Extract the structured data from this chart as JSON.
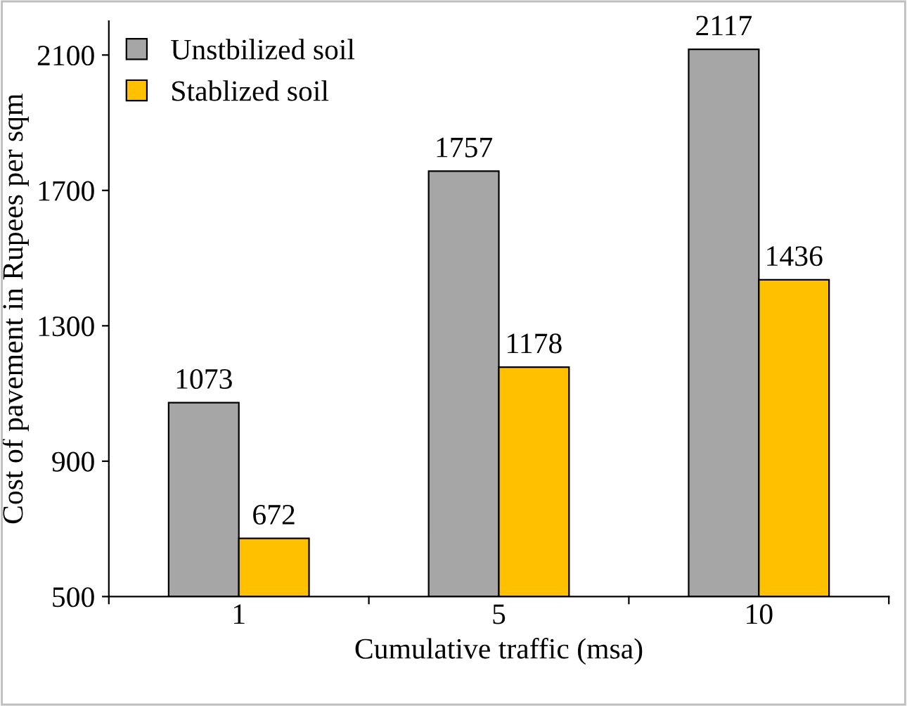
{
  "chart_data": {
    "type": "bar",
    "xlabel": "Cumulative traffic (msa)",
    "ylabel": "Cost of pavement in Rupees per sqm",
    "categories": [
      "1",
      "5",
      "10"
    ],
    "series": [
      {
        "name": "Unstbilized soil",
        "color": "#a6a6a6",
        "values": [
          1073,
          1757,
          2117
        ]
      },
      {
        "name": "Stablized soil",
        "color": "#ffc000",
        "values": [
          672,
          1178,
          1436
        ]
      }
    ],
    "ylim": [
      500,
      2200
    ],
    "yticks": [
      500,
      900,
      1300,
      1700,
      2100
    ],
    "data_labels": true,
    "legend": "top left",
    "grid": false
  }
}
